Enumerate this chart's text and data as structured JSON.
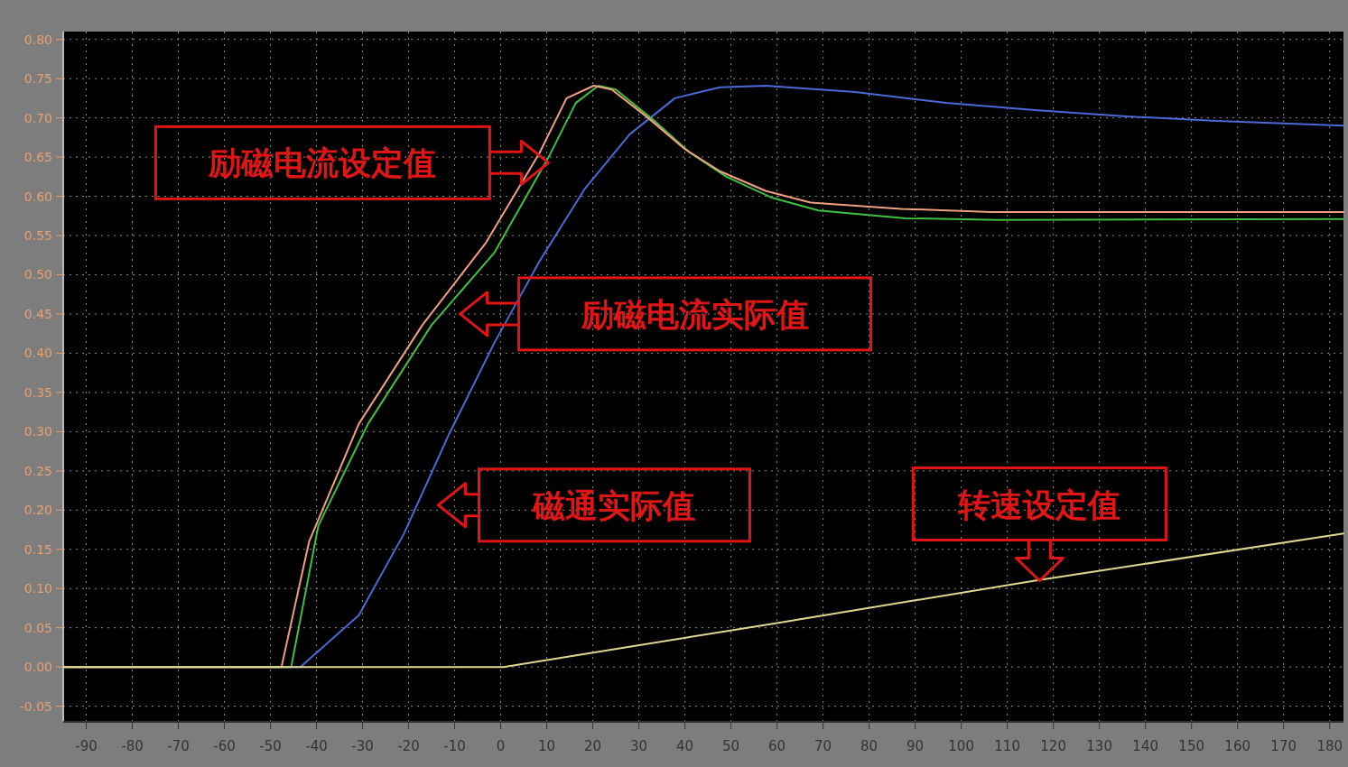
{
  "chart_data": {
    "type": "line",
    "xlim": [
      -95,
      183
    ],
    "ylim": [
      -0.07,
      0.81
    ],
    "xticks": [
      -90,
      -80,
      -70,
      -60,
      -50,
      -40,
      -30,
      -20,
      -10,
      0,
      10,
      20,
      30,
      40,
      50,
      60,
      70,
      80,
      90,
      100,
      110,
      120,
      130,
      140,
      150,
      160,
      170,
      180
    ],
    "yticks": [
      {
        "value": -0.05,
        "label": "-0.05"
      },
      {
        "value": 0,
        "label": "0.00"
      },
      {
        "value": 0.05,
        "label": "0.05"
      },
      {
        "value": 0.1,
        "label": "0.10"
      },
      {
        "value": 0.15,
        "label": "0.15"
      },
      {
        "value": 0.2,
        "label": "0.20"
      },
      {
        "value": 0.25,
        "label": "0.25"
      },
      {
        "value": 0.3,
        "label": "0.30"
      },
      {
        "value": 0.35,
        "label": "0.35"
      },
      {
        "value": 0.4,
        "label": "0.40"
      },
      {
        "value": 0.45,
        "label": "0.45"
      },
      {
        "value": 0.5,
        "label": "0.50"
      },
      {
        "value": 0.55,
        "label": "0.55"
      },
      {
        "value": 0.6,
        "label": "0.60"
      },
      {
        "value": 0.65,
        "label": "0.65"
      },
      {
        "value": 0.7,
        "label": "0.70"
      },
      {
        "value": 0.75,
        "label": "0.75"
      },
      {
        "value": 0.8,
        "label": "0.80"
      }
    ],
    "grid": true,
    "series": [
      {
        "color": "#4a6ad8",
        "x": [
          -95,
          -43.5,
          -30.8,
          -21,
          -11.2,
          -1.4,
          8.4,
          18.2,
          28,
          37.8,
          47.6,
          57.5,
          77,
          96.7,
          116,
          135.9,
          155.5,
          183
        ],
        "values": [
          0,
          0,
          0.066,
          0.17,
          0.297,
          0.413,
          0.517,
          0.609,
          0.679,
          0.725,
          0.739,
          0.741,
          0.733,
          0.719,
          0.71,
          0.702,
          0.696,
          0.69
        ]
      },
      {
        "color": "#40c040",
        "x": [
          -95,
          -45.5,
          -39.6,
          -28.8,
          -15,
          -1.4,
          10.4,
          16.3,
          21.2,
          25,
          33,
          41,
          49,
          59,
          69,
          88,
          108,
          183
        ],
        "values": [
          0,
          0,
          0.18,
          0.31,
          0.436,
          0.528,
          0.65,
          0.719,
          0.741,
          0.736,
          0.698,
          0.656,
          0.625,
          0.598,
          0.582,
          0.572,
          0.57,
          0.571
        ]
      },
      {
        "color": "#f0a080",
        "x": [
          -95,
          -47.6,
          -41.6,
          -30.8,
          -17,
          -3.3,
          8.4,
          14.3,
          20.2,
          24.1,
          32,
          39.8,
          47.6,
          57.5,
          67.3,
          86.9,
          106.5,
          183
        ],
        "values": [
          0,
          0,
          0.16,
          0.31,
          0.436,
          0.54,
          0.655,
          0.725,
          0.741,
          0.736,
          0.7,
          0.661,
          0.632,
          0.607,
          0.592,
          0.584,
          0.58,
          0.58
        ]
      },
      {
        "color": "#e0d890",
        "x": [
          -95,
          0.6,
          60,
          116,
          183
        ],
        "values": [
          0,
          0,
          0.056,
          0.11,
          0.17
        ]
      }
    ],
    "annotations": [
      "励磁电流设定值",
      "励磁电流实际值",
      "磁通实际值",
      {
        "text": "转速设定值",
        "x": 117,
        "y": 0.11
      }
    ]
  }
}
